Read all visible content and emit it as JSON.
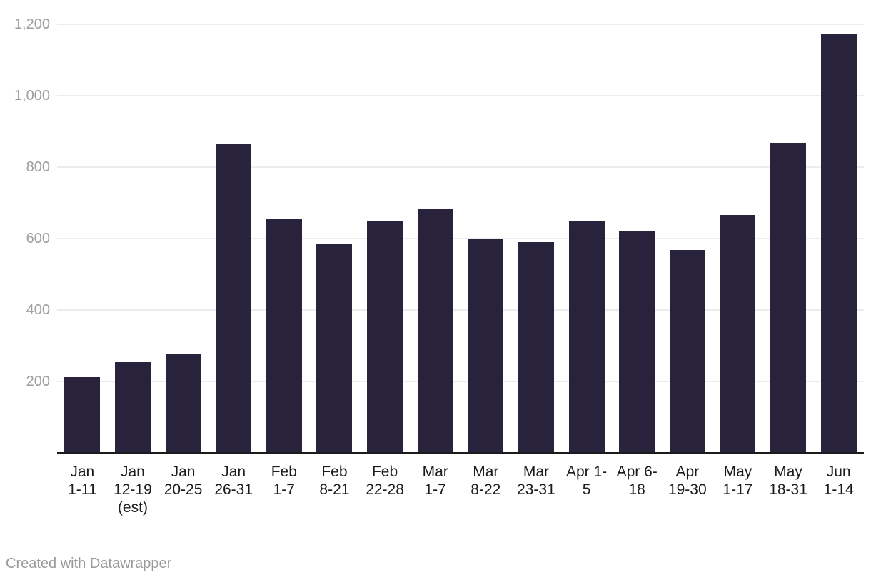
{
  "chart_data": {
    "type": "bar",
    "title": "",
    "xlabel": "",
    "ylabel": "",
    "categories": [
      "Jan 1-11",
      "Jan 12-19 (est)",
      "Jan 20-25",
      "Jan 26-31",
      "Feb 1-7",
      "Feb 8-21",
      "Feb 22-28",
      "Mar 1-7",
      "Mar 8-22",
      "Mar 23-31",
      "Apr 1-5",
      "Apr 6-18",
      "Apr 19-30",
      "May 1-17",
      "May 18-31",
      "Jun 1-14"
    ],
    "category_lines": [
      [
        "Jan",
        "1-11"
      ],
      [
        "Jan",
        "12-19",
        "(est)"
      ],
      [
        "Jan",
        "20-25"
      ],
      [
        "Jan",
        "26-31"
      ],
      [
        "Feb",
        "1-7"
      ],
      [
        "Feb",
        "8-21"
      ],
      [
        "Feb",
        "22-28"
      ],
      [
        "Mar",
        "1-7"
      ],
      [
        "Mar",
        "8-22"
      ],
      [
        "Mar",
        "23-31"
      ],
      [
        "Apr 1-",
        "5"
      ],
      [
        "Apr 6-",
        "18"
      ],
      [
        "Apr",
        "19-30"
      ],
      [
        "May",
        "1-17"
      ],
      [
        "May",
        "18-31"
      ],
      [
        "Jun",
        "1-14"
      ]
    ],
    "values": [
      213,
      255,
      276,
      864,
      654,
      585,
      650,
      682,
      598,
      590,
      650,
      622,
      568,
      666,
      868,
      1172
    ],
    "ylim": [
      0,
      1200
    ],
    "yticks": [
      200,
      400,
      600,
      800,
      1000,
      1200
    ],
    "ytick_labels": [
      "200",
      "400",
      "600",
      "800",
      "1,000",
      "1,200"
    ],
    "grid": "horizontal",
    "legend": "none",
    "colors": {
      "bar": "#29223c",
      "gridline": "#ececec",
      "axis_line": "#1b1b1b",
      "ytick_label": "#9e9e9e",
      "xtick_label": "#1c1c1c",
      "background": "#ffffff"
    }
  },
  "footer": {
    "credit": "Created with Datawrapper"
  }
}
